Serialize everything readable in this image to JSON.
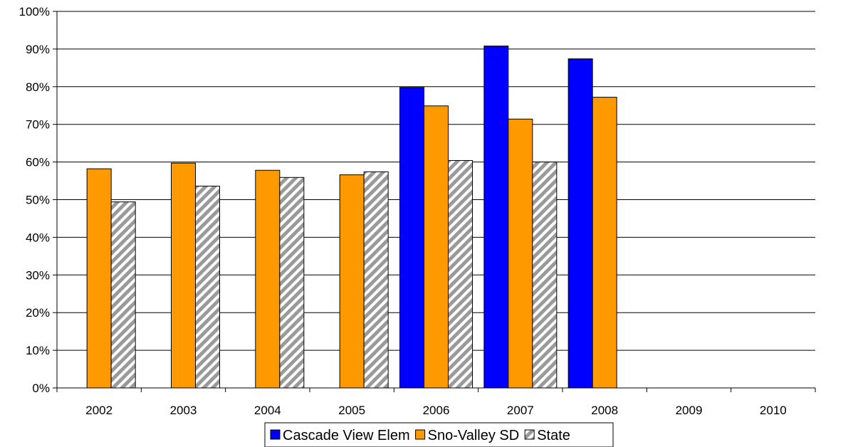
{
  "chart_data": {
    "type": "bar",
    "title": "",
    "xlabel": "",
    "ylabel": "",
    "categories": [
      "2002",
      "2003",
      "2004",
      "2005",
      "2006",
      "2007",
      "2008",
      "2009",
      "2010"
    ],
    "ylim": [
      0,
      100
    ],
    "yticks": [
      "0%",
      "10%",
      "20%",
      "30%",
      "40%",
      "50%",
      "60%",
      "70%",
      "80%",
      "90%",
      "100%"
    ],
    "grid": true,
    "legend_position": "bottom",
    "series": [
      {
        "name": "Cascade View Elem",
        "color": "#0000ff",
        "pattern": "solid",
        "values": [
          null,
          null,
          null,
          null,
          79.8,
          90.8,
          87.4,
          null,
          null
        ]
      },
      {
        "name": "Sno-Valley SD",
        "color": "#ff9900",
        "pattern": "solid",
        "values": [
          58.2,
          59.7,
          57.8,
          56.6,
          74.9,
          71.4,
          77.2,
          null,
          null
        ]
      },
      {
        "name": "State",
        "color": "#c0c0c0",
        "pattern": "diagonal-stripes",
        "values": [
          49.4,
          53.6,
          55.9,
          57.4,
          60.4,
          60.0,
          null,
          null,
          null
        ]
      }
    ]
  }
}
